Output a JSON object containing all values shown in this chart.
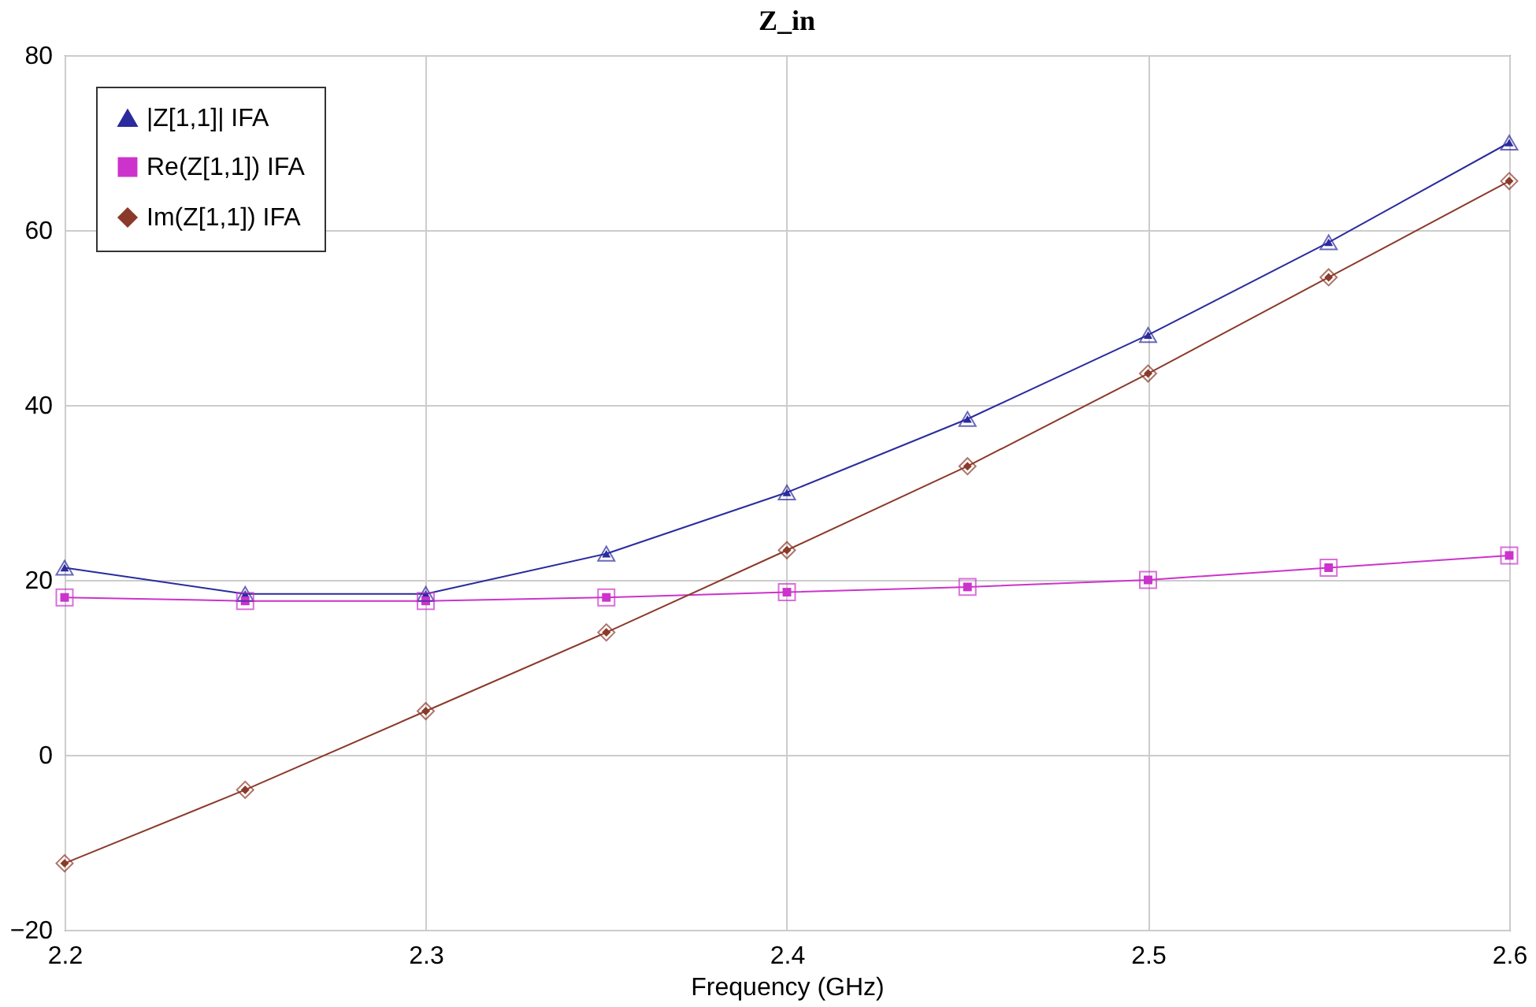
{
  "chart_data": {
    "type": "line",
    "title": "Z_in",
    "xlabel": "Frequency (GHz)",
    "x": [
      2.2,
      2.25,
      2.3,
      2.35,
      2.4,
      2.45,
      2.5,
      2.55,
      2.6
    ],
    "series": [
      {
        "name": "|Z[1,1]| IFA",
        "color": "#2b2b9e",
        "marker": "triangle",
        "values": [
          21.4,
          18.4,
          18.4,
          23,
          30,
          38.4,
          48,
          58.6,
          70
        ]
      },
      {
        "name": "Re(Z[1,1]) IFA",
        "color": "#cc33cc",
        "marker": "square",
        "values": [
          18,
          17.6,
          17.6,
          18,
          18.6,
          19.2,
          20,
          21.4,
          22.8
        ]
      },
      {
        "name": "Im(Z[1,1]) IFA",
        "color": "#8b3a2a",
        "marker": "diamond",
        "values": [
          -12.4,
          -4,
          5,
          14,
          23.4,
          33,
          43.6,
          54.6,
          65.6
        ]
      }
    ],
    "xlim": [
      2.2,
      2.6
    ],
    "xticks": [
      2.2,
      2.3,
      2.4,
      2.5,
      2.6
    ],
    "ylim": [
      -20,
      80
    ],
    "yticks": [
      -20,
      0,
      20,
      40,
      60,
      80
    ],
    "grid": true,
    "legend": "top left",
    "line_style": "solid"
  }
}
